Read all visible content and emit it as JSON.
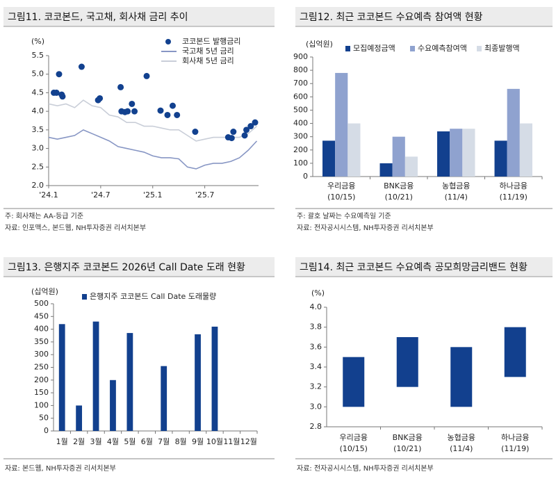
{
  "chart_data": [
    {
      "type": "line",
      "title": "그림11. 코코본드, 국고채, 회사채 금리 추이",
      "unit": "(%)",
      "xlim": [
        0,
        24.2
      ],
      "xticks": [
        {
          "value": 0,
          "label": "'24.1"
        },
        {
          "value": 6,
          "label": "'24.7"
        },
        {
          "value": 12,
          "label": "'25.1"
        },
        {
          "value": 18,
          "label": "'25.7"
        }
      ],
      "ylim": [
        2,
        5.5
      ],
      "yticks": [
        {
          "value": 2,
          "label": "2.0"
        },
        2.5,
        {
          "value": 3,
          "label": "3.0"
        },
        3.5,
        {
          "value": 4,
          "label": "4.0"
        },
        4.5,
        {
          "value": 5,
          "label": "5.0"
        },
        5.5
      ],
      "series": [
        {
          "name": "코코본드 발행금리",
          "type": "scatter",
          "color": "#12418f",
          "x": [
            0.6,
            0.9,
            1.2,
            1.5,
            1.6,
            3.8,
            5.7,
            5.9,
            8.3,
            8.4,
            8.8,
            9.1,
            9.6,
            9.9,
            11.3,
            12.9,
            13.7,
            14.3,
            14.8,
            16.9,
            20.7,
            21.1,
            21.3,
            22.6,
            22.8,
            23.3,
            23.8
          ],
          "values": [
            4.5,
            4.5,
            5.0,
            4.45,
            4.4,
            5.2,
            4.3,
            4.35,
            4.65,
            4.0,
            3.98,
            4.0,
            4.2,
            4.0,
            4.95,
            4.02,
            3.9,
            4.15,
            3.9,
            3.45,
            3.3,
            3.28,
            3.45,
            3.35,
            3.5,
            3.6,
            3.7
          ]
        },
        {
          "name": "국고채 5년 금리",
          "type": "line",
          "color": "#8796c4",
          "x": [
            0,
            1,
            2,
            3,
            4,
            5,
            6,
            7,
            8,
            9,
            10,
            11,
            12,
            13,
            14,
            15,
            16,
            17,
            18,
            19,
            20,
            21,
            22,
            23,
            24
          ],
          "values": [
            3.3,
            3.25,
            3.3,
            3.35,
            3.5,
            3.4,
            3.3,
            3.2,
            3.05,
            3.0,
            2.95,
            2.9,
            2.8,
            2.75,
            2.75,
            2.72,
            2.5,
            2.45,
            2.55,
            2.6,
            2.6,
            2.65,
            2.75,
            2.95,
            3.2
          ]
        },
        {
          "name": "회사채 5년 금리",
          "type": "line",
          "color": "#c9ced8",
          "x": [
            0,
            1,
            2,
            3,
            4,
            5,
            6,
            7,
            8,
            9,
            10,
            11,
            12,
            13,
            14,
            15,
            16,
            17,
            18,
            19,
            20,
            21,
            22,
            23,
            24
          ],
          "values": [
            4.2,
            4.15,
            4.2,
            4.1,
            4.3,
            4.15,
            4.1,
            3.9,
            3.85,
            3.7,
            3.7,
            3.6,
            3.6,
            3.55,
            3.5,
            3.5,
            3.35,
            3.2,
            3.25,
            3.3,
            3.3,
            3.3,
            3.3,
            3.4,
            3.6
          ]
        }
      ],
      "footnotes": [
        "주: 회사채는 AA-등급 기준",
        "자료: 인포맥스, 본드웹, NH투자증권 리서치본부"
      ]
    },
    {
      "type": "bar",
      "title": "그림12. 최근 코코본드 수요예측 참여액 현황",
      "unit": "(십억원)",
      "categories": [
        [
          "우리금융",
          "(10/15)"
        ],
        [
          "BNK금융",
          "(10/21)"
        ],
        [
          "농협금융",
          "(11/4)"
        ],
        [
          "하나금융",
          "(11/19)"
        ]
      ],
      "ylim": [
        0,
        900
      ],
      "yticks": [
        0,
        100,
        200,
        300,
        400,
        500,
        600,
        700,
        800,
        900
      ],
      "series": [
        {
          "name": "모집예정금액",
          "color": "#12408e",
          "values": [
            270,
            100,
            340,
            270
          ]
        },
        {
          "name": "수요예측참여액",
          "color": "#8fa2cf",
          "values": [
            780,
            300,
            360,
            660
          ]
        },
        {
          "name": "최종발행액",
          "color": "#d5dce6",
          "values": [
            400,
            150,
            360,
            400
          ]
        }
      ],
      "footnotes": [
        "주: 괄호 날짜는 수요예측일 기준",
        "자료: 전자공시시스템, NH투자증권 리서치본부"
      ]
    },
    {
      "type": "bar",
      "title": "그림13. 은행지주 코코본드 2026년 Call Date 도래 현황",
      "unit": "(십억원)",
      "categories": [
        "1월",
        "2월",
        "3월",
        "4월",
        "5월",
        "6월",
        "7월",
        "8월",
        "9월",
        "10월",
        "11월",
        "12월"
      ],
      "ylim": [
        0,
        500
      ],
      "yticks": [
        0,
        50,
        100,
        150,
        200,
        250,
        300,
        350,
        400,
        450,
        500
      ],
      "series": [
        {
          "name": "은행지주 코코본드 Call Date 도래물량",
          "color": "#12408e",
          "values": [
            420,
            100,
            430,
            200,
            385,
            0,
            255,
            0,
            380,
            410,
            0,
            0
          ]
        }
      ],
      "footnotes": [
        "자료: 본드웹, NH투자증권 리서치본부"
      ]
    },
    {
      "type": "range",
      "title": "그림14. 최근 코코본드 수요예측 공모희망금리밴드 현황",
      "unit": "(%)",
      "categories": [
        [
          "우리금융",
          "(10/15)"
        ],
        [
          "BNK금융",
          "(10/21)"
        ],
        [
          "농협금융",
          "(11/4)"
        ],
        [
          "하나금융",
          "(11/19)"
        ]
      ],
      "ylim": [
        2.8,
        4.0
      ],
      "yticks": [
        2.8,
        {
          "value": 3,
          "label": "3.0"
        },
        3.2,
        3.4,
        3.6,
        3.8,
        {
          "value": 4,
          "label": "4.0"
        }
      ],
      "color": "#12408e",
      "low": [
        3.0,
        3.2,
        3.0,
        3.3
      ],
      "high": [
        3.5,
        3.7,
        3.6,
        3.8
      ],
      "footnotes": [
        "자료: 전자공시시스템, NH투자증권 리서치본부"
      ]
    }
  ]
}
